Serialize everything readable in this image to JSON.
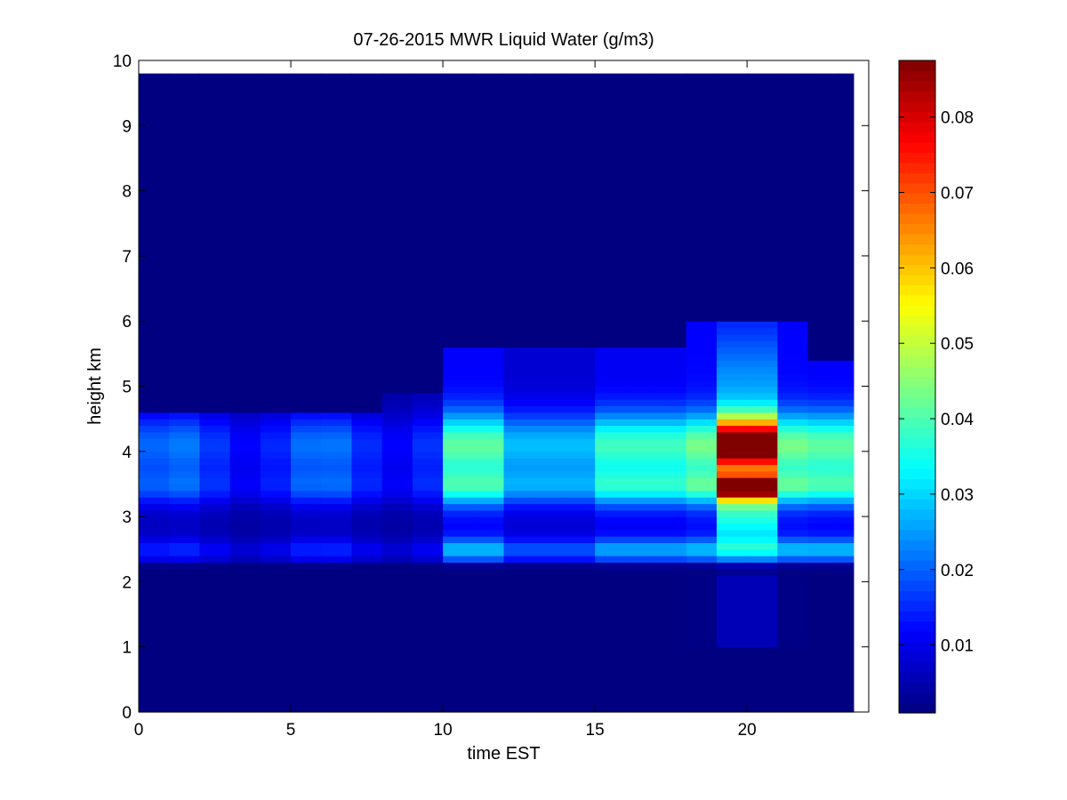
{
  "chart_data": {
    "type": "heatmap",
    "title": "07-26-2015 MWR Liquid Water (g/m3)",
    "xlabel": "time EST",
    "ylabel": "height km",
    "xlim": [
      0,
      24
    ],
    "ylim": [
      0,
      10
    ],
    "x_ticks": [
      "0",
      "5",
      "10",
      "15",
      "20"
    ],
    "y_ticks": [
      "0",
      "1",
      "2",
      "3",
      "4",
      "5",
      "6",
      "7",
      "8",
      "9",
      "10"
    ],
    "colormap": "jet",
    "colorbar": {
      "range": [
        0.001,
        0.0875
      ],
      "ticks": [
        "0.01",
        "0.02",
        "0.03",
        "0.04",
        "0.05",
        "0.06",
        "0.07",
        "0.08"
      ]
    },
    "data_extent": {
      "x": [
        0,
        23.5
      ],
      "y": [
        0,
        9.75
      ]
    },
    "time_bins_hours": [
      0.5,
      1.5,
      2.5,
      3.5,
      4.5,
      5.5,
      6.5,
      7.5,
      8.5,
      9.5,
      10.5,
      11.5,
      12.5,
      13.5,
      14.5,
      15.5,
      16.5,
      17.5,
      18.5,
      19.5,
      20.5,
      21.5,
      22.5,
      23.5
    ],
    "profile_features_km": {
      "main_layer": 4.1,
      "secondary_layer": 3.45,
      "lower_layer": 2.5
    },
    "peak_value": {
      "time": 20,
      "height": 4.1,
      "value": 0.087
    },
    "secondary_peak": {
      "time": 20,
      "height": 3.45,
      "value": 0.084
    },
    "notes_visible": "Cloud liquid water concentrated between about 2.2 and 6 km, strongest near 20 EST."
  }
}
